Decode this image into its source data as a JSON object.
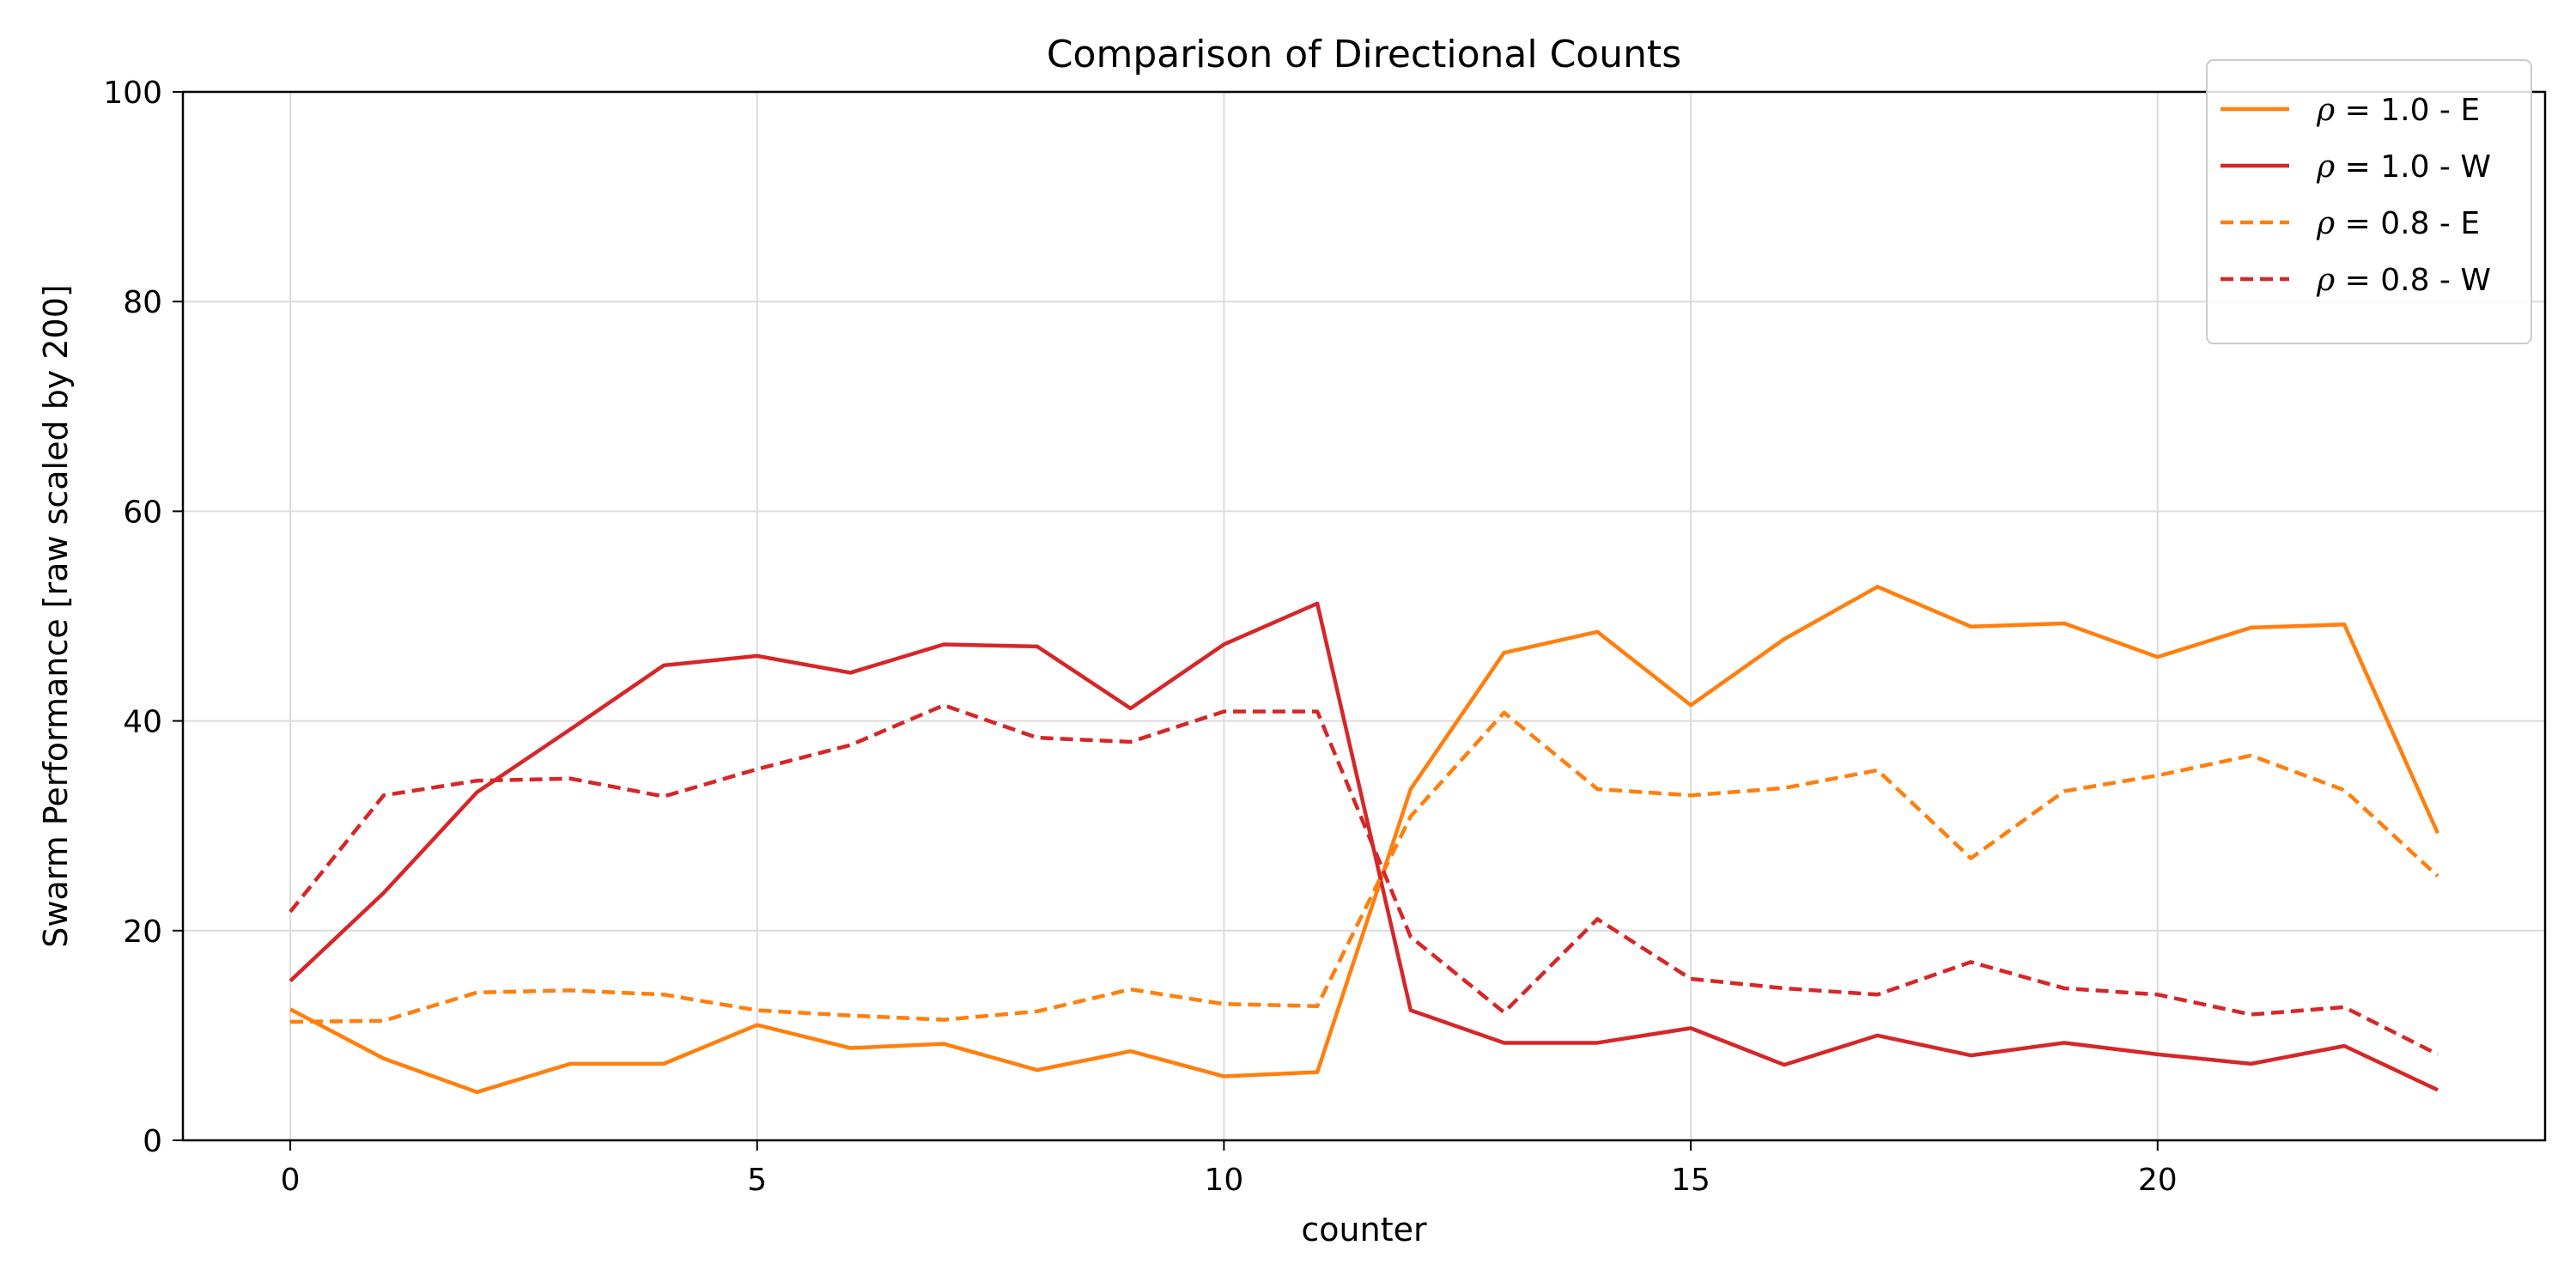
{
  "chart_data": {
    "type": "line",
    "title": "Comparison of Directional Counts",
    "xlabel": "counter",
    "ylabel": "Swarm Performance [raw scaled by 200]",
    "xlim": [
      -1.15,
      24.15
    ],
    "ylim": [
      0,
      100
    ],
    "xticks": [
      0,
      5,
      10,
      15,
      20
    ],
    "yticks": [
      0,
      20,
      40,
      60,
      80,
      100
    ],
    "grid": true,
    "legend_position": "top-right",
    "x": [
      0,
      1,
      2,
      3,
      4,
      5,
      6,
      7,
      8,
      9,
      10,
      11,
      12,
      13,
      14,
      15,
      16,
      17,
      18,
      19,
      20,
      21,
      22,
      23
    ],
    "series": [
      {
        "name": "ρ = 1.0 - E",
        "legend": {
          "symbol": "ρ",
          "rest": " = 1.0 - E"
        },
        "color": "#ff7f0e",
        "dash": "solid",
        "values": [
          12.5,
          7.8,
          4.6,
          7.3,
          7.3,
          11.0,
          8.8,
          9.2,
          6.7,
          8.5,
          6.1,
          6.5,
          33.5,
          46.5,
          48.5,
          41.5,
          47.8,
          52.8,
          49.0,
          49.3,
          46.1,
          48.9,
          49.2,
          29.3
        ]
      },
      {
        "name": "ρ = 1.0 - W",
        "legend": {
          "symbol": "ρ",
          "rest": " = 1.0 - W"
        },
        "color": "#d62728",
        "dash": "solid",
        "values": [
          15.2,
          23.6,
          33.2,
          39.2,
          45.3,
          46.2,
          44.6,
          47.3,
          47.1,
          41.2,
          47.3,
          51.2,
          12.4,
          9.3,
          9.3,
          10.7,
          7.2,
          10.0,
          8.1,
          9.3,
          8.2,
          7.3,
          9.0,
          4.8
        ]
      },
      {
        "name": "ρ = 0.8 - E",
        "legend": {
          "symbol": "ρ",
          "rest": " = 0.8 - E"
        },
        "color": "#ff7f0e",
        "dash": "dashed",
        "values": [
          11.3,
          11.4,
          14.1,
          14.3,
          13.9,
          12.4,
          11.9,
          11.5,
          12.3,
          14.4,
          13.0,
          12.8,
          30.9,
          40.8,
          33.5,
          32.9,
          33.6,
          35.3,
          26.9,
          33.3,
          34.8,
          36.7,
          33.4,
          25.2
        ]
      },
      {
        "name": "ρ = 0.8 - W",
        "legend": {
          "symbol": "ρ",
          "rest": " = 0.8 - W"
        },
        "color": "#d62728",
        "dash": "dashed",
        "values": [
          21.8,
          32.9,
          34.3,
          34.5,
          32.8,
          35.4,
          37.7,
          41.5,
          38.4,
          38.0,
          40.9,
          40.9,
          19.4,
          12.2,
          21.1,
          15.4,
          14.5,
          13.9,
          17.0,
          14.5,
          13.9,
          12.0,
          12.7,
          8.2
        ]
      }
    ]
  }
}
